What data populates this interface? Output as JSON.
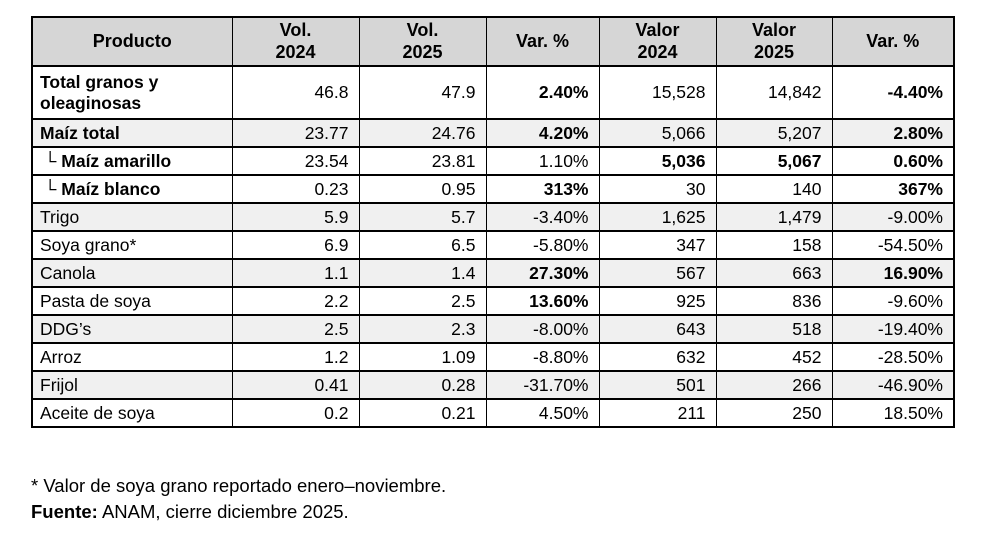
{
  "colors": {
    "header_bg": "#d6d6d6",
    "row_alt_bg": "#f0f0f0",
    "border": "#000000",
    "text": "#000000",
    "page_bg": "#ffffff"
  },
  "table": {
    "header": [
      "Producto",
      "Vol.\n2024",
      "Vol.\n2025",
      "Var. %",
      "Valor\n2024",
      "Valor\n2025",
      "Var. %"
    ],
    "rows": [
      {
        "product": "Total granos y oleaginosas",
        "bold_product": true,
        "indent": false,
        "shaded": false,
        "tall": true,
        "cells": [
          {
            "t": "46.8",
            "b": false
          },
          {
            "t": "47.9",
            "b": false
          },
          {
            "t": "2.40%",
            "b": true
          },
          {
            "t": "15,528",
            "b": false
          },
          {
            "t": "14,842",
            "b": false
          },
          {
            "t": "-4.40%",
            "b": true
          }
        ]
      },
      {
        "product": "Maíz total",
        "bold_product": true,
        "indent": false,
        "shaded": true,
        "tall": false,
        "cells": [
          {
            "t": "23.77",
            "b": false
          },
          {
            "t": "24.76",
            "b": false
          },
          {
            "t": "4.20%",
            "b": true
          },
          {
            "t": "5,066",
            "b": false
          },
          {
            "t": "5,207",
            "b": false
          },
          {
            "t": "2.80%",
            "b": true
          }
        ]
      },
      {
        "product": "└ Maíz amarillo",
        "bold_product": true,
        "indent": true,
        "shaded": false,
        "tall": false,
        "cells": [
          {
            "t": "23.54",
            "b": false
          },
          {
            "t": "23.81",
            "b": false
          },
          {
            "t": "1.10%",
            "b": false
          },
          {
            "t": "5,036",
            "b": true
          },
          {
            "t": "5,067",
            "b": true
          },
          {
            "t": "0.60%",
            "b": true
          }
        ]
      },
      {
        "product": "└ Maíz blanco",
        "bold_product": true,
        "indent": true,
        "shaded": false,
        "tall": false,
        "cells": [
          {
            "t": "0.23",
            "b": false
          },
          {
            "t": "0.95",
            "b": false
          },
          {
            "t": "313%",
            "b": true
          },
          {
            "t": "30",
            "b": false
          },
          {
            "t": "140",
            "b": false
          },
          {
            "t": "367%",
            "b": true
          }
        ]
      },
      {
        "product": "Trigo",
        "bold_product": false,
        "indent": false,
        "shaded": true,
        "tall": false,
        "cells": [
          {
            "t": "5.9",
            "b": false
          },
          {
            "t": "5.7",
            "b": false
          },
          {
            "t": "-3.40%",
            "b": false
          },
          {
            "t": "1,625",
            "b": false
          },
          {
            "t": "1,479",
            "b": false
          },
          {
            "t": "-9.00%",
            "b": false
          }
        ]
      },
      {
        "product": "Soya grano*",
        "bold_product": false,
        "indent": false,
        "shaded": false,
        "tall": false,
        "cells": [
          {
            "t": "6.9",
            "b": false
          },
          {
            "t": "6.5",
            "b": false
          },
          {
            "t": "-5.80%",
            "b": false
          },
          {
            "t": "347",
            "b": false
          },
          {
            "t": "158",
            "b": false
          },
          {
            "t": "-54.50%",
            "b": false
          }
        ]
      },
      {
        "product": "Canola",
        "bold_product": false,
        "indent": false,
        "shaded": true,
        "tall": false,
        "cells": [
          {
            "t": "1.1",
            "b": false
          },
          {
            "t": "1.4",
            "b": false
          },
          {
            "t": "27.30%",
            "b": true
          },
          {
            "t": "567",
            "b": false
          },
          {
            "t": "663",
            "b": false
          },
          {
            "t": "16.90%",
            "b": true
          }
        ]
      },
      {
        "product": "Pasta de soya",
        "bold_product": false,
        "indent": false,
        "shaded": false,
        "tall": false,
        "cells": [
          {
            "t": "2.2",
            "b": false
          },
          {
            "t": "2.5",
            "b": false
          },
          {
            "t": "13.60%",
            "b": true
          },
          {
            "t": "925",
            "b": false
          },
          {
            "t": "836",
            "b": false
          },
          {
            "t": "-9.60%",
            "b": false
          }
        ]
      },
      {
        "product": "DDG’s",
        "bold_product": false,
        "indent": false,
        "shaded": true,
        "tall": false,
        "cells": [
          {
            "t": "2.5",
            "b": false
          },
          {
            "t": "2.3",
            "b": false
          },
          {
            "t": "-8.00%",
            "b": false
          },
          {
            "t": "643",
            "b": false
          },
          {
            "t": "518",
            "b": false
          },
          {
            "t": "-19.40%",
            "b": false
          }
        ]
      },
      {
        "product": "Arroz",
        "bold_product": false,
        "indent": false,
        "shaded": false,
        "tall": false,
        "cells": [
          {
            "t": "1.2",
            "b": false
          },
          {
            "t": "1.09",
            "b": false
          },
          {
            "t": "-8.80%",
            "b": false
          },
          {
            "t": "632",
            "b": false
          },
          {
            "t": "452",
            "b": false
          },
          {
            "t": "-28.50%",
            "b": false
          }
        ]
      },
      {
        "product": "Frijol",
        "bold_product": false,
        "indent": false,
        "shaded": true,
        "tall": false,
        "cells": [
          {
            "t": "0.41",
            "b": false
          },
          {
            "t": "0.28",
            "b": false
          },
          {
            "t": "-31.70%",
            "b": false
          },
          {
            "t": "501",
            "b": false
          },
          {
            "t": "266",
            "b": false
          },
          {
            "t": "-46.90%",
            "b": false
          }
        ]
      },
      {
        "product": "Aceite de soya",
        "bold_product": false,
        "indent": false,
        "shaded": false,
        "tall": false,
        "cells": [
          {
            "t": "0.2",
            "b": false
          },
          {
            "t": "0.21",
            "b": false
          },
          {
            "t": "4.50%",
            "b": false
          },
          {
            "t": "211",
            "b": false
          },
          {
            "t": "250",
            "b": false
          },
          {
            "t": "18.50%",
            "b": false
          }
        ]
      }
    ]
  },
  "footnotes": {
    "note1": "* Valor de soya grano reportado enero–noviembre.",
    "source_label": "Fuente:",
    "source_text": "ANAM, cierre diciembre 2025."
  },
  "chart_data": {
    "type": "table",
    "title": "",
    "columns": [
      "Producto",
      "Vol. 2024",
      "Vol. 2025",
      "Var. %",
      "Valor 2024",
      "Valor 2025",
      "Var. %"
    ],
    "rows": [
      [
        "Total granos y oleaginosas",
        "46.8",
        "47.9",
        "2.40%",
        "15,528",
        "14,842",
        "-4.40%"
      ],
      [
        "Maíz total",
        "23.77",
        "24.76",
        "4.20%",
        "5,066",
        "5,207",
        "2.80%"
      ],
      [
        "└ Maíz amarillo",
        "23.54",
        "23.81",
        "1.10%",
        "5,036",
        "5,067",
        "0.60%"
      ],
      [
        "└ Maíz blanco",
        "0.23",
        "0.95",
        "313%",
        "30",
        "140",
        "367%"
      ],
      [
        "Trigo",
        "5.9",
        "5.7",
        "-3.40%",
        "1,625",
        "1,479",
        "-9.00%"
      ],
      [
        "Soya grano*",
        "6.9",
        "6.5",
        "-5.80%",
        "347",
        "158",
        "-54.50%"
      ],
      [
        "Canola",
        "1.1",
        "1.4",
        "27.30%",
        "567",
        "663",
        "16.90%"
      ],
      [
        "Pasta de soya",
        "2.2",
        "2.5",
        "13.60%",
        "925",
        "836",
        "-9.60%"
      ],
      [
        "DDG’s",
        "2.5",
        "2.3",
        "-8.00%",
        "643",
        "518",
        "-19.40%"
      ],
      [
        "Arroz",
        "1.2",
        "1.09",
        "-8.80%",
        "632",
        "452",
        "-28.50%"
      ],
      [
        "Frijol",
        "0.41",
        "0.28",
        "-31.70%",
        "501",
        "266",
        "-46.90%"
      ],
      [
        "Aceite de soya",
        "0.2",
        "0.21",
        "4.50%",
        "211",
        "250",
        "18.50%"
      ]
    ]
  }
}
